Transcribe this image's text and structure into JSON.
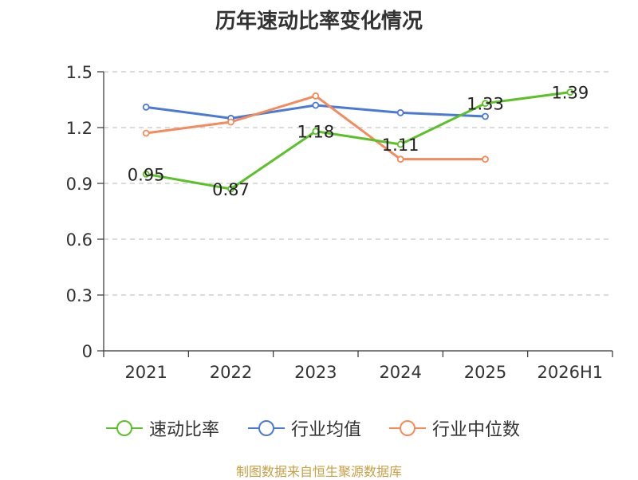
{
  "chart_data": {
    "type": "line",
    "title": "历年速动比率变化情况",
    "categories": [
      "2021",
      "2022",
      "2023",
      "2024",
      "2025",
      "2026H1"
    ],
    "ylim": [
      0,
      1.5
    ],
    "yticks": [
      "0",
      "0.3",
      "0.6",
      "0.9",
      "1.2",
      "1.5"
    ],
    "grid": true,
    "legend_position": "bottom",
    "series": [
      {
        "name": "速动比率",
        "color": "#5cc02a",
        "values": [
          0.95,
          0.87,
          1.18,
          1.11,
          1.33,
          1.39
        ],
        "labels": [
          "0.95",
          "0.87",
          "1.18",
          "1.11",
          "1.33",
          "1.39"
        ]
      },
      {
        "name": "行业均值",
        "color": "#4a7ad6",
        "values": [
          1.31,
          1.25,
          1.32,
          1.28,
          1.26,
          null
        ]
      },
      {
        "name": "行业中位数",
        "color": "#f58b5c",
        "values": [
          1.17,
          1.23,
          1.37,
          1.03,
          1.03,
          null
        ]
      }
    ]
  },
  "legend": {
    "items": [
      {
        "label": "速动比率",
        "color": "#5cc02a"
      },
      {
        "label": "行业均值",
        "color": "#4a7ad6"
      },
      {
        "label": "行业中位数",
        "color": "#f58b5c"
      }
    ]
  },
  "source": "制图数据来自恒生聚源数据库"
}
